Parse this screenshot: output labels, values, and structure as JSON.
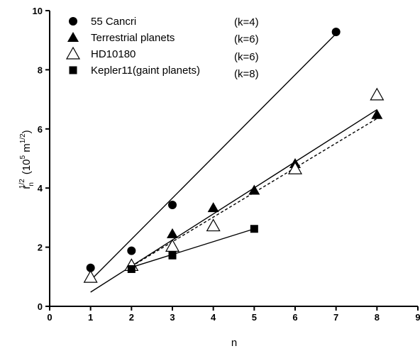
{
  "chart_data": {
    "type": "scatter",
    "xlabel": "n",
    "ylabel": {
      "base": "r",
      "sub": "n",
      "sup": "1/2",
      "units": "(10",
      "units_sup": "5",
      "units_tail": " m",
      "units_tail_sup": "1/2",
      "units_close": ")"
    },
    "xlim": [
      0,
      9
    ],
    "ylim": [
      0,
      10
    ],
    "xticks": [
      0,
      1,
      2,
      3,
      4,
      5,
      6,
      7,
      8,
      9
    ],
    "yticks": [
      0,
      2,
      4,
      6,
      8,
      10
    ],
    "grid": false,
    "legend_placement": "top-left",
    "series": [
      {
        "name": "55 Cancri",
        "k_label": "(k=4)",
        "marker": "circle",
        "x": [
          1,
          2,
          3,
          7
        ],
        "y": [
          1.3,
          1.88,
          3.43,
          9.28
        ],
        "fit": {
          "x": [
            1,
            7
          ],
          "y": [
            0.88,
            9.22
          ],
          "dash": false
        }
      },
      {
        "name": "Terrestrial planets",
        "k_label": "(k=6)",
        "marker": "triangle-filled",
        "x": [
          3,
          4,
          5,
          6,
          8
        ],
        "y": [
          2.45,
          3.33,
          3.92,
          4.82,
          6.48
        ],
        "fit": {
          "x": [
            1,
            8
          ],
          "y": [
            0.48,
            6.65
          ],
          "dash": false
        }
      },
      {
        "name": "HD10180",
        "k_label": "(k=6)",
        "marker": "triangle-open",
        "x": [
          1,
          2,
          3,
          4,
          6,
          8
        ],
        "y": [
          0.98,
          1.38,
          2.03,
          2.72,
          4.65,
          7.15
        ],
        "fit": {
          "x": [
            2,
            8
          ],
          "y": [
            1.35,
            6.35
          ],
          "dash": true
        }
      },
      {
        "name": "Kepler11(gaint planets)",
        "k_label": "(k=8)",
        "marker": "square",
        "x": [
          2,
          3,
          5
        ],
        "y": [
          1.26,
          1.72,
          2.62
        ],
        "fit": {
          "x": [
            2,
            5
          ],
          "y": [
            1.32,
            2.62
          ],
          "dash": false
        }
      }
    ]
  }
}
